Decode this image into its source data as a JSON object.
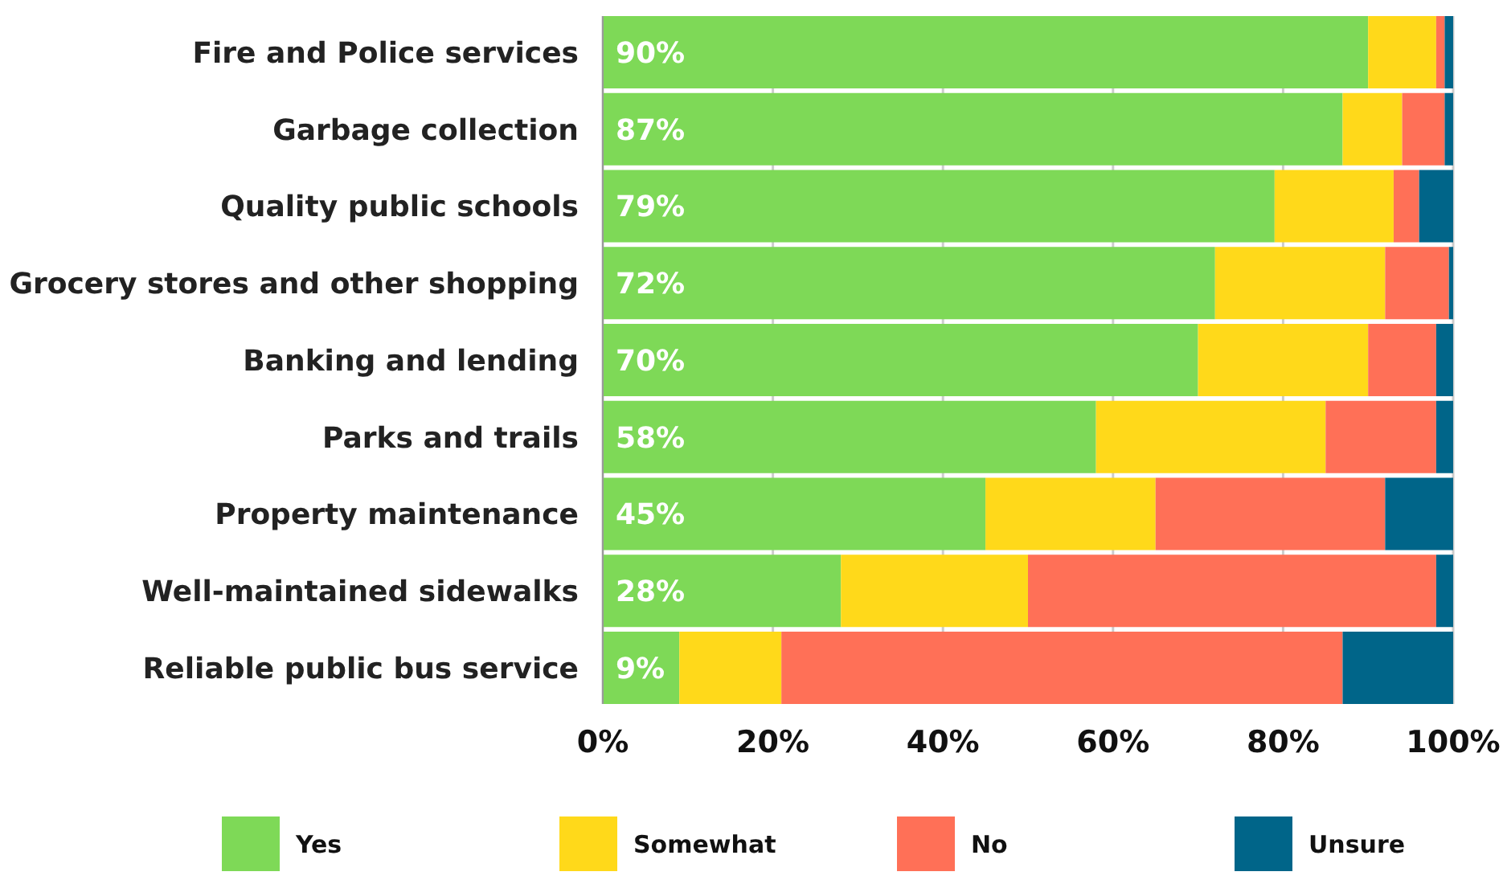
{
  "chart_data": {
    "type": "bar",
    "orientation": "horizontal",
    "stacked": true,
    "categories": [
      "Fire and Police services",
      "Garbage collection",
      "Quality public schools",
      "Grocery stores and other shopping",
      "Banking and lending",
      "Parks and trails",
      "Property maintenance",
      "Well-maintained sidewalks",
      "Reliable public bus service"
    ],
    "series": [
      {
        "name": "Yes",
        "color": "#7ed957",
        "values": [
          90,
          87,
          79,
          72,
          70,
          58,
          45,
          28,
          9
        ],
        "value_labels": [
          "90%",
          "87%",
          "79%",
          "72%",
          "70%",
          "58%",
          "45%",
          "28%",
          "9%"
        ]
      },
      {
        "name": "Somewhat",
        "color": "#ffd91a",
        "values": [
          8,
          7,
          14,
          20,
          20,
          27,
          20,
          22,
          12
        ]
      },
      {
        "name": "No",
        "color": "#ff7057",
        "values": [
          1,
          5,
          3,
          7.5,
          8,
          13,
          27,
          48,
          66
        ]
      },
      {
        "name": "Unsure",
        "color": "#006589",
        "values": [
          1,
          1,
          4,
          0.5,
          2,
          2,
          8,
          2,
          13
        ]
      }
    ],
    "xlim": [
      0,
      100
    ],
    "xticks": [
      {
        "value": 0,
        "label": "0%"
      },
      {
        "value": 20,
        "label": "20%"
      },
      {
        "value": 40,
        "label": "40%"
      },
      {
        "value": 60,
        "label": "60%"
      },
      {
        "value": 80,
        "label": "80%"
      },
      {
        "value": 100,
        "label": "100%"
      }
    ],
    "grid": "x",
    "legend": "bottom"
  }
}
